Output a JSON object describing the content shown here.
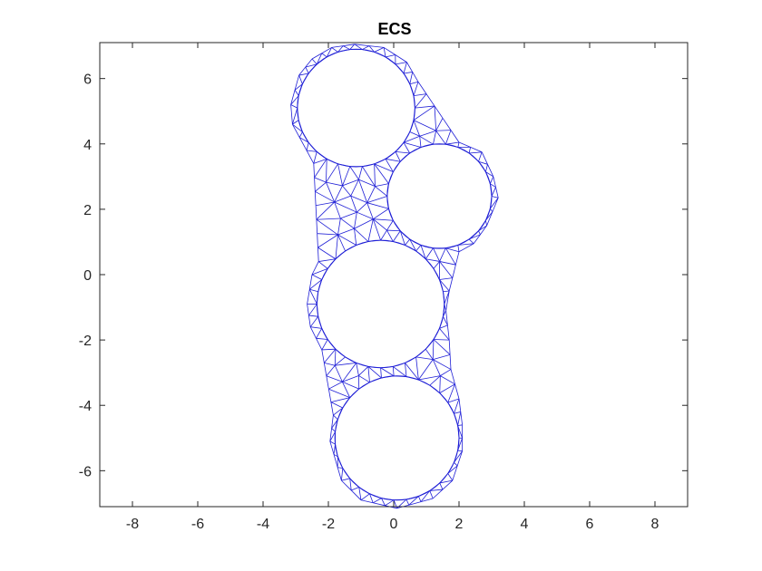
{
  "chart_data": {
    "type": "mesh",
    "title": "ECS",
    "xlabel": "",
    "ylabel": "",
    "xlim": [
      -9,
      9
    ],
    "ylim": [
      -7.1,
      7.1
    ],
    "xticks": [
      -8,
      -6,
      -4,
      -2,
      0,
      2,
      4,
      6,
      8
    ],
    "yticks": [
      -6,
      -4,
      -2,
      0,
      2,
      4,
      6
    ],
    "grid": false,
    "mesh_color": "#1f1fd6",
    "axes_color": "#262626",
    "holes": [
      {
        "cx": -1.15,
        "cy": 5.1,
        "r": 1.8
      },
      {
        "cx": 1.4,
        "cy": 2.4,
        "r": 1.6
      },
      {
        "cx": -0.4,
        "cy": -0.9,
        "r": 1.95
      },
      {
        "cx": 0.1,
        "cy": -5.0,
        "r": 1.9
      }
    ],
    "outer_boundary": [
      [
        -1.2,
        7.05
      ],
      [
        -0.3,
        6.95
      ],
      [
        0.4,
        6.5
      ],
      [
        0.75,
        5.9
      ],
      [
        2.0,
        4.05
      ],
      [
        2.7,
        3.75
      ],
      [
        3.05,
        3.0
      ],
      [
        3.2,
        2.35
      ],
      [
        2.85,
        1.5
      ],
      [
        2.45,
        0.95
      ],
      [
        2.0,
        0.7
      ],
      [
        1.7,
        -0.5
      ],
      [
        1.6,
        -1.1
      ],
      [
        1.7,
        -2.0
      ],
      [
        1.75,
        -2.9
      ],
      [
        2.0,
        -3.8
      ],
      [
        2.1,
        -4.6
      ],
      [
        2.1,
        -5.4
      ],
      [
        1.8,
        -6.3
      ],
      [
        1.2,
        -6.85
      ],
      [
        0.1,
        -7.15
      ],
      [
        -1.0,
        -6.9
      ],
      [
        -1.6,
        -6.3
      ],
      [
        -1.95,
        -5.1
      ],
      [
        -1.85,
        -4.3
      ],
      [
        -2.2,
        -2.3
      ],
      [
        -2.55,
        -1.6
      ],
      [
        -2.65,
        -0.9
      ],
      [
        -2.5,
        0.0
      ],
      [
        -2.3,
        0.4
      ],
      [
        -2.45,
        3.4
      ],
      [
        -3.1,
        4.6
      ],
      [
        -3.15,
        5.2
      ],
      [
        -2.9,
        6.1
      ],
      [
        -2.5,
        6.6
      ],
      [
        -1.9,
        6.95
      ]
    ]
  }
}
